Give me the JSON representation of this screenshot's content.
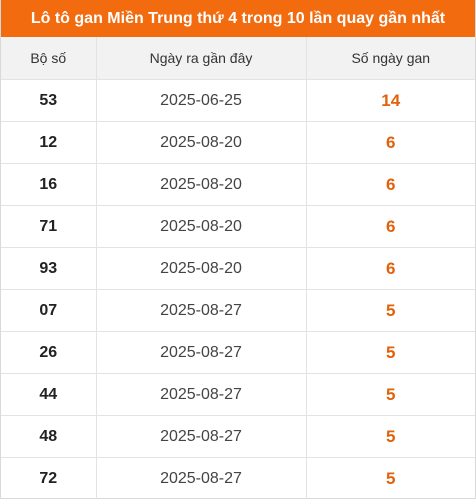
{
  "title": "Lô tô gan Miền Trung thứ 4 trong 10 lần quay gần nhất",
  "headers": {
    "number": "Bộ số",
    "last_date": "Ngày ra gần đây",
    "days_gap": "Số ngày gan"
  },
  "rows": [
    {
      "number": "53",
      "last_date": "2025-06-25",
      "days_gap": "14"
    },
    {
      "number": "12",
      "last_date": "2025-08-20",
      "days_gap": "6"
    },
    {
      "number": "16",
      "last_date": "2025-08-20",
      "days_gap": "6"
    },
    {
      "number": "71",
      "last_date": "2025-08-20",
      "days_gap": "6"
    },
    {
      "number": "93",
      "last_date": "2025-08-20",
      "days_gap": "6"
    },
    {
      "number": "07",
      "last_date": "2025-08-27",
      "days_gap": "5"
    },
    {
      "number": "26",
      "last_date": "2025-08-27",
      "days_gap": "5"
    },
    {
      "number": "44",
      "last_date": "2025-08-27",
      "days_gap": "5"
    },
    {
      "number": "48",
      "last_date": "2025-08-27",
      "days_gap": "5"
    },
    {
      "number": "72",
      "last_date": "2025-08-27",
      "days_gap": "5"
    }
  ],
  "colors": {
    "header_bg": "#f26b0f",
    "gap_value": "#e0620a"
  }
}
